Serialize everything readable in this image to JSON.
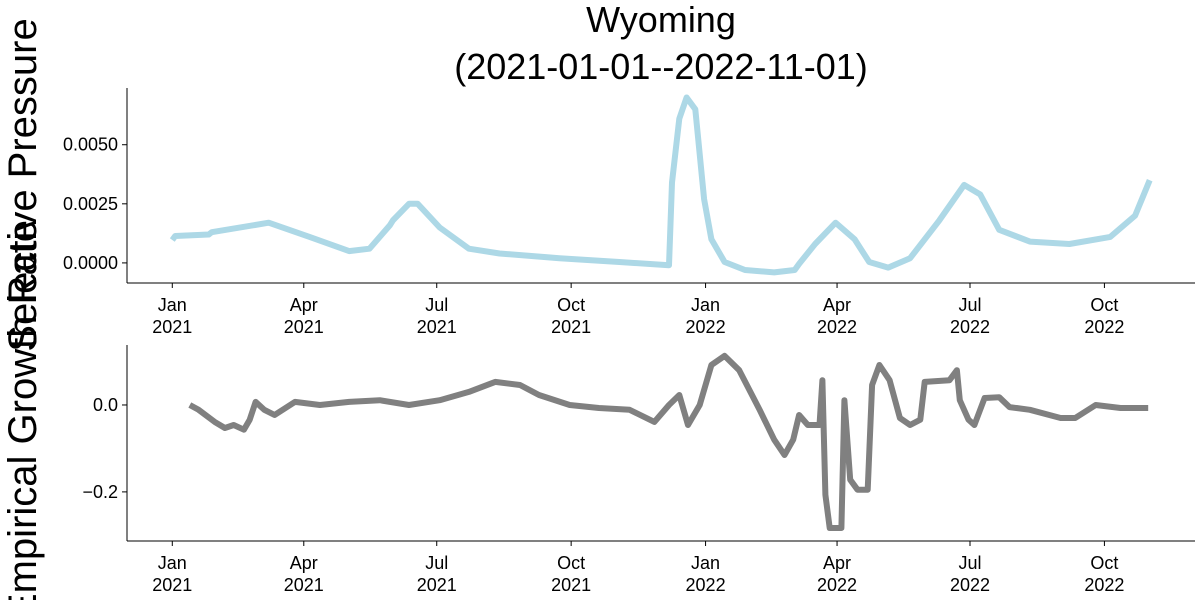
{
  "chart_data": [
    {
      "type": "line",
      "title": "Wyoming",
      "subtitle": "(2021-01-01--2022-11-01)",
      "ylabel": "Selective Pressure",
      "x": [
        "2021-01-01",
        "2021-01-03",
        "2021-01-26",
        "2021-01-28",
        "2021-03-08",
        "2021-04-05",
        "2021-05-02",
        "2021-05-16",
        "2021-05-30",
        "2021-06-01",
        "2021-06-12",
        "2021-06-18",
        "2021-07-03",
        "2021-07-23",
        "2021-08-13",
        "2021-09-23",
        "2021-11-03",
        "2021-12-07",
        "2021-12-09",
        "2021-12-14",
        "2021-12-19",
        "2021-12-25",
        "2021-12-31",
        "2022-01-05",
        "2022-01-14",
        "2022-01-28",
        "2022-02-17",
        "2022-03-03",
        "2022-03-06",
        "2022-03-17",
        "2022-03-31",
        "2022-04-13",
        "2022-04-23",
        "2022-05-06",
        "2022-05-21",
        "2022-06-10",
        "2022-06-27",
        "2022-07-08",
        "2022-07-21",
        "2022-08-11",
        "2022-09-07",
        "2022-10-05",
        "2022-10-22",
        "2022-11-01"
      ],
      "series": [
        {
          "color": "#add8e6",
          "values": [
            0.00097,
            0.00114,
            0.0012,
            0.0013,
            0.0017,
            0.0011,
            0.0005,
            0.0006,
            0.0016,
            0.0018,
            0.0025,
            0.0025,
            0.0015,
            0.0006,
            0.0004,
            0.0002,
            4e-05,
            -0.0001,
            0.0034,
            0.0061,
            0.007,
            0.0065,
            0.0027,
            0.001,
            4e-05,
            -0.0003,
            -0.0004,
            -0.0003,
            -4e-05,
            0.0008,
            0.0017,
            0.001,
            4e-05,
            -0.0002,
            0.0002,
            0.0018,
            0.0033,
            0.0029,
            0.0014,
            0.0009,
            0.0008,
            0.0011,
            0.002,
            0.0035
          ]
        }
      ],
      "xlim": [
        "2020-12-01",
        "2022-12-02"
      ],
      "xticks": [
        {
          "value": "2021-01-01",
          "label": "Jan\n2021"
        },
        {
          "value": "2021-04-01",
          "label": "Apr\n2021"
        },
        {
          "value": "2021-07-01",
          "label": "Jul\n2021"
        },
        {
          "value": "2021-10-01",
          "label": "Oct\n2021"
        },
        {
          "value": "2022-01-01",
          "label": "Jan\n2022"
        },
        {
          "value": "2022-04-01",
          "label": "Apr\n2022"
        },
        {
          "value": "2022-07-01",
          "label": "Jul\n2022"
        },
        {
          "value": "2022-10-01",
          "label": "Oct\n2022"
        }
      ],
      "ylim": [
        -0.00085,
        0.0074
      ],
      "yticks": [
        {
          "value": 0,
          "label": "0.0000"
        },
        {
          "value": 0.0025,
          "label": "0.0025"
        },
        {
          "value": 0.005,
          "label": "0.0050"
        }
      ]
    },
    {
      "type": "line",
      "ylabel": "Empirical Growth Rate",
      "x": [
        "2021-01-13",
        "2021-01-19",
        "2021-01-30",
        "2021-02-06",
        "2021-02-12",
        "2021-02-19",
        "2021-02-23",
        "2021-02-27",
        "2021-03-05",
        "2021-03-12",
        "2021-03-26",
        "2021-04-12",
        "2021-05-02",
        "2021-05-23",
        "2021-06-12",
        "2021-07-03",
        "2021-07-23",
        "2021-08-10",
        "2021-08-27",
        "2021-09-09",
        "2021-09-30",
        "2021-10-20",
        "2021-11-10",
        "2021-11-27",
        "2021-12-07",
        "2021-12-14",
        "2021-12-20",
        "2021-12-28",
        "2022-01-05",
        "2022-01-14",
        "2022-01-24",
        "2022-02-07",
        "2022-02-17",
        "2022-02-24",
        "2022-03-02",
        "2022-03-06",
        "2022-03-12",
        "2022-03-20",
        "2022-03-22",
        "2022-03-24",
        "2022-03-27",
        "2022-04-04",
        "2022-04-06",
        "2022-04-10",
        "2022-04-15",
        "2022-04-22",
        "2022-04-25",
        "2022-04-30",
        "2022-05-07",
        "2022-05-14",
        "2022-05-21",
        "2022-05-28",
        "2022-05-31",
        "2022-06-17",
        "2022-06-22",
        "2022-06-24",
        "2022-06-30",
        "2022-07-04",
        "2022-07-11",
        "2022-07-21",
        "2022-07-28",
        "2022-08-11",
        "2022-09-01",
        "2022-09-11",
        "2022-09-25",
        "2022-10-12",
        "2022-10-31"
      ],
      "series": [
        {
          "color": "#808080",
          "values": [
            0,
            -0.011,
            -0.039,
            -0.053,
            -0.046,
            -0.057,
            -0.034,
            0.007,
            -0.011,
            -0.023,
            0.007,
            0,
            0.007,
            0.011,
            0,
            0.011,
            0.03,
            0.053,
            0.046,
            0.023,
            0,
            -0.007,
            -0.011,
            -0.039,
            0,
            0.023,
            -0.046,
            0,
            0.092,
            0.113,
            0.08,
            -0.011,
            -0.08,
            -0.115,
            -0.08,
            -0.023,
            -0.046,
            -0.046,
            0.057,
            -0.207,
            -0.283,
            -0.283,
            0.011,
            -0.172,
            -0.195,
            -0.195,
            0.046,
            0.092,
            0.057,
            -0.03,
            -0.046,
            -0.034,
            0.053,
            0.057,
            0.08,
            0.011,
            -0.034,
            -0.046,
            0.016,
            0.018,
            -0.005,
            -0.011,
            -0.03,
            -0.03,
            0,
            -0.007,
            -0.007
          ]
        }
      ],
      "xlim": [
        "2020-12-01",
        "2022-12-02"
      ],
      "xticks": [
        {
          "value": "2021-01-01",
          "label": "Jan\n2021"
        },
        {
          "value": "2021-04-01",
          "label": "Apr\n2021"
        },
        {
          "value": "2021-07-01",
          "label": "Jul\n2021"
        },
        {
          "value": "2021-10-01",
          "label": "Oct\n2021"
        },
        {
          "value": "2022-01-01",
          "label": "Jan\n2022"
        },
        {
          "value": "2022-04-01",
          "label": "Apr\n2022"
        },
        {
          "value": "2022-07-01",
          "label": "Jul\n2022"
        },
        {
          "value": "2022-10-01",
          "label": "Oct\n2022"
        }
      ],
      "ylim": [
        -0.313,
        0.138
      ],
      "yticks": [
        {
          "value": -0.2,
          "label": "−0.2"
        },
        {
          "value": 0,
          "label": "0.0"
        }
      ]
    }
  ]
}
